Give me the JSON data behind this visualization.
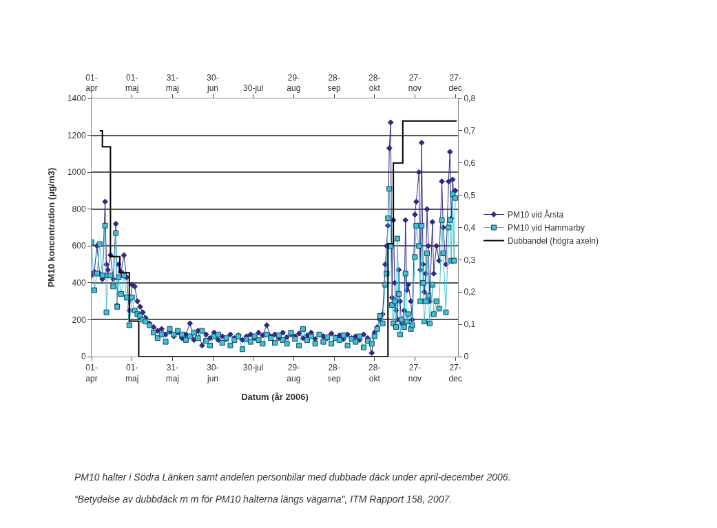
{
  "chart_data": {
    "type": "line",
    "xlabel": "Datum (år 2006)",
    "ylabel": "PM10 koncentration (µg/m3)",
    "x": [
      "2006-04-01",
      "2006-04-03",
      "2006-04-05",
      "2006-04-07",
      "2006-04-09",
      "2006-04-11",
      "2006-04-12",
      "2006-04-13",
      "2006-04-15",
      "2006-04-17",
      "2006-04-19",
      "2006-04-20",
      "2006-04-21",
      "2006-04-23",
      "2006-04-25",
      "2006-04-27",
      "2006-04-29",
      "2006-05-01",
      "2006-05-03",
      "2006-05-05",
      "2006-05-07",
      "2006-05-09",
      "2006-05-11",
      "2006-05-14",
      "2006-05-17",
      "2006-05-20",
      "2006-05-23",
      "2006-05-26",
      "2006-05-29",
      "2006-06-01",
      "2006-06-04",
      "2006-06-07",
      "2006-06-10",
      "2006-06-13",
      "2006-06-16",
      "2006-06-19",
      "2006-06-22",
      "2006-06-25",
      "2006-06-28",
      "2006-07-01",
      "2006-07-04",
      "2006-07-07",
      "2006-07-10",
      "2006-07-13",
      "2006-07-16",
      "2006-07-19",
      "2006-07-22",
      "2006-07-25",
      "2006-07-28",
      "2006-07-31",
      "2006-08-03",
      "2006-08-06",
      "2006-08-09",
      "2006-08-12",
      "2006-08-15",
      "2006-08-18",
      "2006-08-21",
      "2006-08-24",
      "2006-08-27",
      "2006-08-30",
      "2006-09-02",
      "2006-09-05",
      "2006-09-08",
      "2006-09-11",
      "2006-09-14",
      "2006-09-17",
      "2006-09-20",
      "2006-09-23",
      "2006-09-26",
      "2006-09-29",
      "2006-10-02",
      "2006-10-05",
      "2006-10-08",
      "2006-10-11",
      "2006-10-14",
      "2006-10-17",
      "2006-10-20",
      "2006-10-23",
      "2006-10-26",
      "2006-10-28",
      "2006-10-30",
      "2006-11-01",
      "2006-11-03",
      "2006-11-05",
      "2006-11-06",
      "2006-11-07",
      "2006-11-08",
      "2006-11-09",
      "2006-11-10",
      "2006-11-11",
      "2006-11-12",
      "2006-11-13",
      "2006-11-14",
      "2006-11-15",
      "2006-11-16",
      "2006-11-17",
      "2006-11-19",
      "2006-11-20",
      "2006-11-21",
      "2006-11-22",
      "2006-11-24",
      "2006-11-25",
      "2006-11-27",
      "2006-11-28",
      "2006-11-30",
      "2006-12-01",
      "2006-12-02",
      "2006-12-03",
      "2006-12-04",
      "2006-12-05",
      "2006-12-06",
      "2006-12-07",
      "2006-12-08",
      "2006-12-10",
      "2006-12-11",
      "2006-12-13",
      "2006-12-15",
      "2006-12-17",
      "2006-12-18",
      "2006-12-20",
      "2006-12-22",
      "2006-12-23",
      "2006-12-24",
      "2006-12-25",
      "2006-12-26",
      "2006-12-27"
    ],
    "series": [
      {
        "name": "PM10 vid Årsta",
        "marker": "diamond",
        "color": "#2e2a85",
        "values": [
          440,
          460,
          600,
          450,
          420,
          840,
          500,
          470,
          550,
          420,
          720,
          280,
          500,
          460,
          550,
          430,
          250,
          390,
          380,
          300,
          270,
          240,
          210,
          180,
          160,
          140,
          150,
          120,
          135,
          110,
          130,
          100,
          120,
          180,
          90,
          140,
          60,
          120,
          100,
          130,
          90,
          110,
          95,
          120,
          100,
          115,
          90,
          110,
          120,
          100,
          130,
          115,
          170,
          110,
          120,
          100,
          130,
          105,
          120,
          110,
          125,
          100,
          115,
          130,
          95,
          120,
          110,
          100,
          125,
          105,
          115,
          95,
          120,
          100,
          110,
          90,
          120,
          100,
          20,
          130,
          160,
          200,
          230,
          500,
          600,
          710,
          1130,
          1270,
          320,
          740,
          400,
          250,
          200,
          470,
          300,
          180,
          250,
          740,
          360,
          390,
          300,
          200,
          770,
          840,
          1000,
          470,
          1160,
          500,
          350,
          450,
          800,
          600,
          300,
          730,
          450,
          600,
          520,
          950,
          700,
          500,
          950,
          1110,
          750,
          960,
          870,
          900
        ]
      },
      {
        "name": "PM10 vid Hammarby",
        "marker": "square",
        "color": "#3cc4d4",
        "values": [
          620,
          360,
          450,
          610,
          440,
          710,
          240,
          440,
          440,
          380,
          670,
          270,
          430,
          340,
          440,
          320,
          170,
          320,
          250,
          230,
          220,
          200,
          190,
          170,
          130,
          100,
          120,
          80,
          150,
          120,
          140,
          120,
          90,
          110,
          130,
          100,
          140,
          85,
          60,
          110,
          120,
          75,
          100,
          60,
          90,
          110,
          40,
          95,
          80,
          110,
          90,
          70,
          120,
          100,
          75,
          115,
          90,
          70,
          130,
          95,
          60,
          150,
          90,
          110,
          70,
          120,
          80,
          105,
          70,
          100,
          90,
          115,
          60,
          95,
          80,
          110,
          50,
          85,
          70,
          110,
          150,
          220,
          180,
          390,
          450,
          750,
          910,
          600,
          280,
          180,
          300,
          160,
          640,
          340,
          120,
          200,
          160,
          450,
          190,
          230,
          150,
          170,
          540,
          710,
          600,
          300,
          710,
          400,
          190,
          300,
          560,
          330,
          180,
          390,
          230,
          300,
          260,
          740,
          560,
          240,
          700,
          740,
          520,
          880,
          520,
          860
        ]
      },
      {
        "name": "Dubbandel (högra axeln)",
        "type": "step",
        "axis": "y2",
        "marker": "none",
        "color": "#000000",
        "x": [
          "2006-04-07",
          "2006-04-09",
          "2006-04-15",
          "2006-04-22",
          "2006-04-29",
          "2006-05-06",
          "2006-11-07",
          "2006-11-11",
          "2006-11-18",
          "2006-12-28"
        ],
        "values": [
          0.7,
          0.65,
          0.31,
          0.26,
          0.11,
          0,
          0.35,
          0.6,
          0.73,
          0.73
        ]
      }
    ],
    "xlim": [
      "2006-04-01",
      "2006-12-29"
    ],
    "xticks": [
      {
        "value": "2006-04-01",
        "label": "01-\napr"
      },
      {
        "value": "2006-05-01",
        "label": "01-\nmaj"
      },
      {
        "value": "2006-05-31",
        "label": "31-\nmaj"
      },
      {
        "value": "2006-06-30",
        "label": "30-\njun"
      },
      {
        "value": "2006-07-30",
        "label": "30-jul"
      },
      {
        "value": "2006-08-29",
        "label": "29-\naug"
      },
      {
        "value": "2006-09-28",
        "label": "28-\nsep"
      },
      {
        "value": "2006-10-28",
        "label": "28-\nokt"
      },
      {
        "value": "2006-11-27",
        "label": "27-\nnov"
      },
      {
        "value": "2006-12-27",
        "label": "27-\ndec"
      }
    ],
    "x2lim": [
      "2006-04-01",
      "2006-12-29"
    ],
    "x2ticks": [
      {
        "value": "2006-04-01",
        "label": "01-\napr"
      },
      {
        "value": "2006-05-01",
        "label": "01-\nmaj"
      },
      {
        "value": "2006-05-31",
        "label": "31-\nmaj"
      },
      {
        "value": "2006-06-30",
        "label": "30-\njun"
      },
      {
        "value": "2006-07-30",
        "label": "30-jul"
      },
      {
        "value": "2006-08-29",
        "label": "29-\naug"
      },
      {
        "value": "2006-09-28",
        "label": "28-\nsep"
      },
      {
        "value": "2006-10-28",
        "label": "28-\nokt"
      },
      {
        "value": "2006-11-27",
        "label": "27-\nnov"
      },
      {
        "value": "2006-12-27",
        "label": "27-\ndec"
      }
    ],
    "ylim": [
      0,
      1400
    ],
    "yticks": [
      0,
      200,
      400,
      600,
      800,
      1000,
      1200,
      1400
    ],
    "y2lim": [
      0,
      0.8
    ],
    "y2ticks": [
      0,
      {
        "value": 0.1,
        "label": "0,1"
      },
      {
        "value": 0.2,
        "label": "0,2"
      },
      {
        "value": 0.3,
        "label": "0,3"
      },
      {
        "value": 0.4,
        "label": "0,4"
      },
      {
        "value": 0.5,
        "label": "0,5"
      },
      {
        "value": 0.6,
        "label": "0,6"
      },
      {
        "value": 0.7,
        "label": "0,7"
      },
      {
        "value": 0.8,
        "label": "0,8"
      }
    ],
    "grid": "y",
    "legend": "right",
    "annotations": [
      "PM10 halter i Södra Länken samt andelen personbilar med dubbade däck under april-december 2006.",
      "“Betydelse av dubbdäck m m för PM10 halterna längs vägarna\", ITM Rapport 158, 2007."
    ]
  }
}
